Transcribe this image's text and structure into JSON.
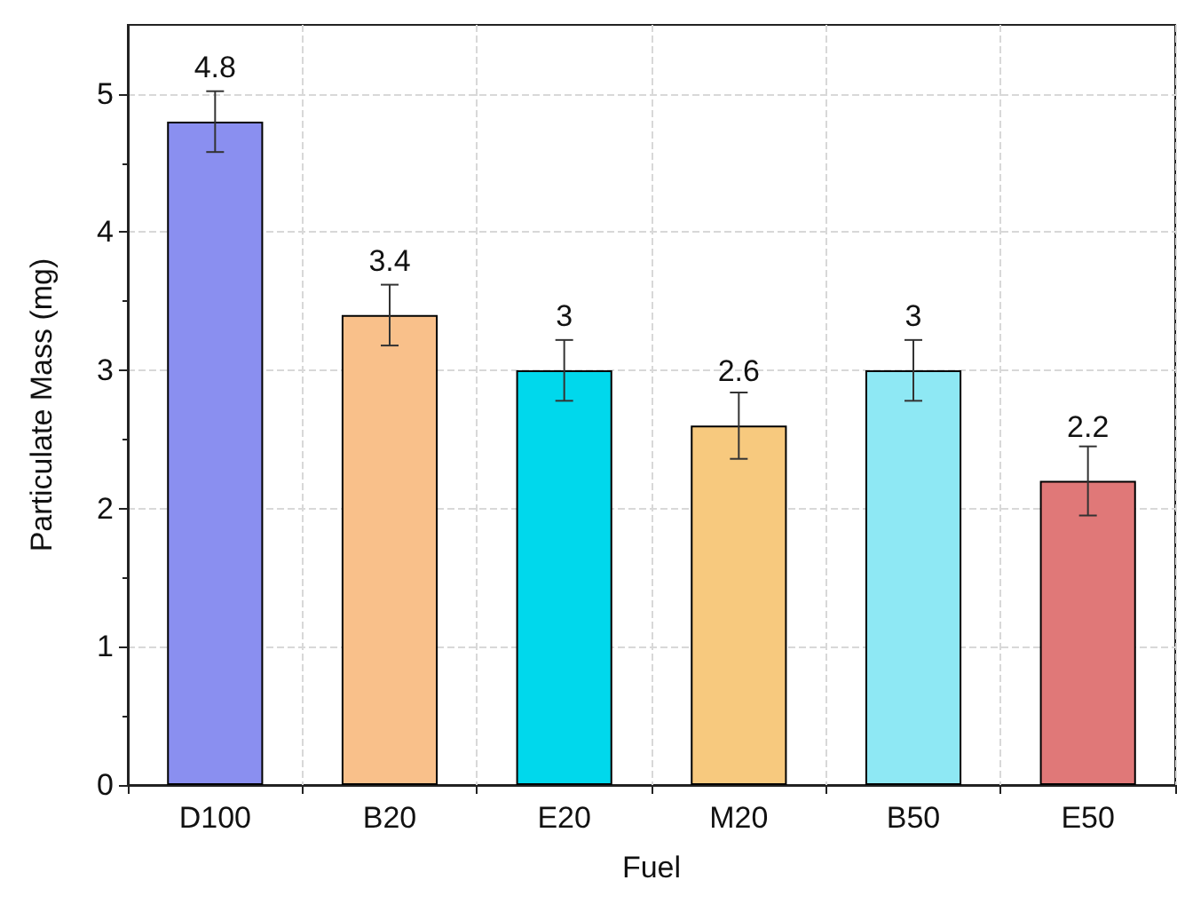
{
  "chart_data": {
    "type": "bar",
    "xlabel": "Fuel",
    "ylabel": "Particulate Mass (mg)",
    "categories": [
      "D100",
      "B20",
      "E20",
      "M20",
      "B50",
      "E50"
    ],
    "values": [
      4.8,
      3.4,
      3,
      2.6,
      3,
      2.2
    ],
    "colors": [
      "#8a8ff0",
      "#f9c08a",
      "#00d8ec",
      "#f7c97e",
      "#8ee8f4",
      "#e07878"
    ],
    "errors": [
      0.22,
      0.22,
      0.22,
      0.24,
      0.22,
      0.25
    ],
    "data_labels": true,
    "ylim": [
      0,
      5.5
    ],
    "yticks": [
      0,
      1,
      2,
      3,
      4,
      5
    ],
    "grid": true
  }
}
